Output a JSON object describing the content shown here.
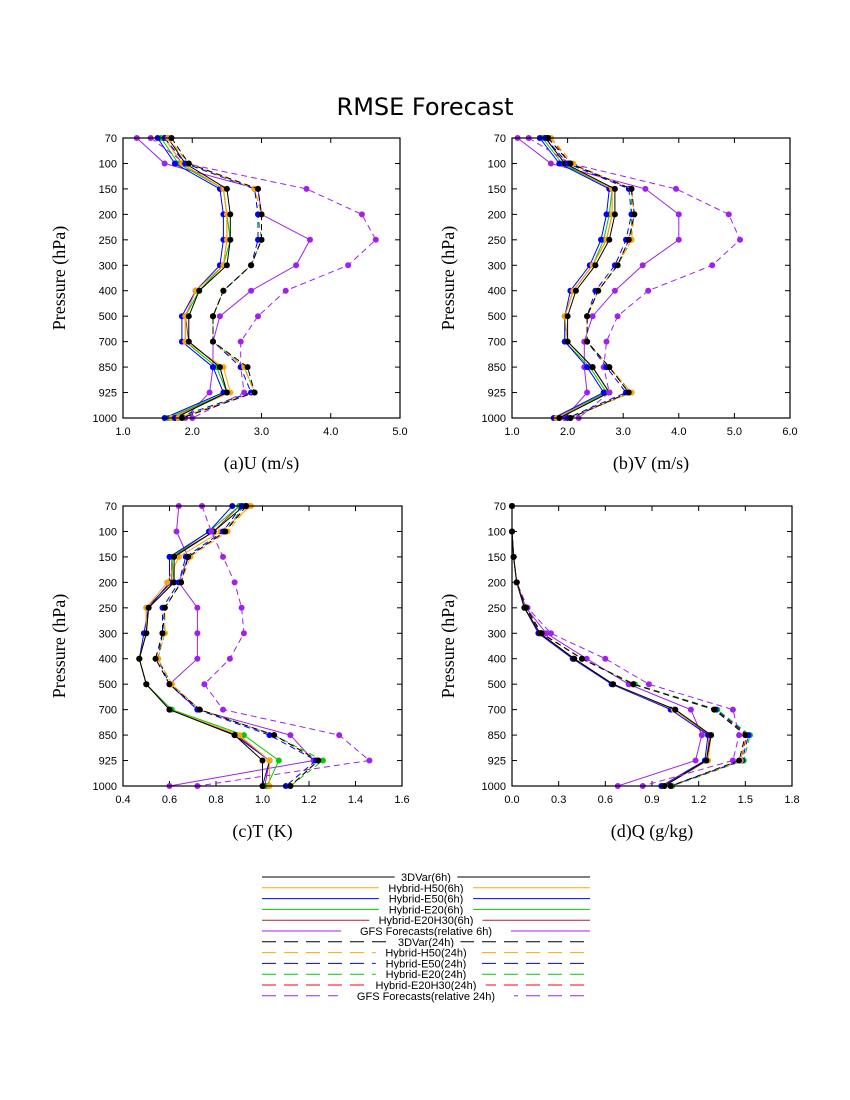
{
  "title": "RMSE  Forecast",
  "legend": [
    {
      "label": "3DVar(6h)",
      "color": "#000000",
      "dash": false
    },
    {
      "label": "Hybrid-H50(6h)",
      "color": "#ffa500",
      "dash": false
    },
    {
      "label": "Hybrid-E50(6h)",
      "color": "#0000ff",
      "dash": false
    },
    {
      "label": "Hybrid-E20(6h)",
      "color": "#00cc00",
      "dash": false
    },
    {
      "label": "Hybrid-E20H30(6h)",
      "color": "#b22222",
      "dash": false
    },
    {
      "label": "GFS Forecasts(relative 6h)",
      "color": "#a020f0",
      "dash": false
    },
    {
      "label": "3DVar(24h)",
      "color": "#000000",
      "dash": true
    },
    {
      "label": "Hybrid-H50(24h)",
      "color": "#ffa500",
      "dash": true
    },
    {
      "label": "Hybrid-E50(24h)",
      "color": "#0000ff",
      "dash": true
    },
    {
      "label": "Hybrid-E20(24h)",
      "color": "#00cc00",
      "dash": true
    },
    {
      "label": "Hybrid-E20H30(24h)",
      "color": "#ff0000",
      "dash": true
    },
    {
      "label": "GFS Forecasts(relative 24h)",
      "color": "#a020f0",
      "dash": true
    }
  ],
  "chart_data": [
    {
      "type": "line",
      "xlabel": "(a)U (m/s)",
      "ylabel": "Pressure (hPa)",
      "xlim": [
        1.0,
        5.0
      ],
      "xticks": [
        "1.0",
        "2.0",
        "3.0",
        "4.0",
        "5.0"
      ],
      "y": [
        "70",
        "100",
        "150",
        "200",
        "250",
        "300",
        "400",
        "500",
        "700",
        "850",
        "925",
        "1000"
      ],
      "series": [
        {
          "name": "3DVar(6h)",
          "values": [
            1.65,
            1.9,
            2.5,
            2.55,
            2.55,
            2.5,
            2.1,
            1.95,
            1.95,
            2.4,
            2.5,
            1.75
          ]
        },
        {
          "name": "Hybrid-H50(6h)",
          "values": [
            1.6,
            1.85,
            2.45,
            2.5,
            2.5,
            2.45,
            2.05,
            1.9,
            1.9,
            2.45,
            2.55,
            1.7
          ]
        },
        {
          "name": "Hybrid-E50(6h)",
          "values": [
            1.5,
            1.75,
            2.4,
            2.45,
            2.45,
            2.4,
            2.05,
            1.85,
            1.85,
            2.3,
            2.45,
            1.6
          ]
        },
        {
          "name": "Hybrid-E20(6h)",
          "values": [
            1.55,
            1.8,
            2.45,
            2.5,
            2.55,
            2.45,
            2.1,
            1.9,
            1.9,
            2.35,
            2.5,
            1.65
          ]
        },
        {
          "name": "Hybrid-E20H30(6h)",
          "values": [
            1.6,
            1.85,
            2.45,
            2.5,
            2.5,
            2.45,
            2.05,
            1.9,
            1.95,
            2.4,
            2.5,
            1.7
          ]
        },
        {
          "name": "GFS Forecasts(relative 6h)",
          "values": [
            1.2,
            1.6,
            2.95,
            3.0,
            3.7,
            3.5,
            2.85,
            2.4,
            2.3,
            2.3,
            2.25,
            1.9
          ]
        },
        {
          "name": "3DVar(24h)",
          "values": [
            1.7,
            1.95,
            2.95,
            3.0,
            3.0,
            2.85,
            2.45,
            2.3,
            2.3,
            2.8,
            2.9,
            1.85
          ]
        },
        {
          "name": "Hybrid-H50(24h)",
          "values": [
            1.65,
            1.95,
            2.9,
            3.0,
            3.0,
            2.85,
            2.45,
            2.3,
            2.3,
            2.75,
            2.9,
            1.8
          ]
        },
        {
          "name": "Hybrid-E50(24h)",
          "values": [
            1.6,
            1.9,
            2.9,
            2.95,
            2.95,
            2.85,
            2.45,
            2.3,
            2.3,
            2.7,
            2.85,
            1.75
          ]
        },
        {
          "name": "Hybrid-E20(24h)",
          "values": [
            1.6,
            1.9,
            2.9,
            2.95,
            3.0,
            2.85,
            2.45,
            2.3,
            2.3,
            2.75,
            2.9,
            1.8
          ]
        },
        {
          "name": "Hybrid-E20H30(24h)",
          "values": [
            1.65,
            1.95,
            2.9,
            3.0,
            3.0,
            2.85,
            2.45,
            2.3,
            2.3,
            2.75,
            2.9,
            1.8
          ]
        },
        {
          "name": "GFS Forecasts(relative 24h)",
          "values": [
            1.4,
            1.9,
            3.65,
            4.45,
            4.65,
            4.25,
            3.35,
            2.95,
            2.7,
            2.7,
            2.75,
            2.0
          ]
        }
      ]
    },
    {
      "type": "line",
      "xlabel": "(b)V (m/s)",
      "ylabel": "Pressure (hPa)",
      "xlim": [
        1.0,
        6.0
      ],
      "xticks": [
        "1.0",
        "2.0",
        "3.0",
        "4.0",
        "5.0",
        "6.0"
      ],
      "y": [
        "70",
        "100",
        "150",
        "200",
        "250",
        "300",
        "400",
        "500",
        "700",
        "850",
        "925",
        "1000"
      ],
      "series": [
        {
          "name": "3DVar(6h)",
          "values": [
            1.6,
            1.95,
            2.85,
            2.85,
            2.75,
            2.5,
            2.15,
            2.0,
            2.0,
            2.45,
            2.75,
            1.85
          ]
        },
        {
          "name": "Hybrid-H50(6h)",
          "values": [
            1.6,
            1.95,
            2.8,
            2.8,
            2.7,
            2.45,
            2.1,
            1.95,
            2.0,
            2.45,
            2.75,
            1.8
          ]
        },
        {
          "name": "Hybrid-E50(6h)",
          "values": [
            1.5,
            1.85,
            2.75,
            2.7,
            2.6,
            2.4,
            2.05,
            1.95,
            1.95,
            2.35,
            2.65,
            1.75
          ]
        },
        {
          "name": "Hybrid-E20(6h)",
          "values": [
            1.55,
            1.9,
            2.8,
            2.75,
            2.65,
            2.45,
            2.1,
            1.95,
            1.95,
            2.4,
            2.7,
            1.8
          ]
        },
        {
          "name": "Hybrid-E20H30(6h)",
          "values": [
            1.6,
            1.95,
            2.8,
            2.8,
            2.7,
            2.45,
            2.1,
            1.95,
            2.0,
            2.45,
            2.75,
            1.8
          ]
        },
        {
          "name": "GFS Forecasts(relative 6h)",
          "values": [
            1.1,
            1.7,
            3.4,
            4.0,
            4.0,
            3.35,
            2.85,
            2.45,
            2.3,
            2.3,
            2.35,
            1.95
          ]
        },
        {
          "name": "3DVar(24h)",
          "values": [
            1.65,
            2.05,
            3.15,
            3.2,
            3.1,
            2.9,
            2.55,
            2.35,
            2.35,
            2.75,
            3.1,
            2.05
          ]
        },
        {
          "name": "Hybrid-H50(24h)",
          "values": [
            1.7,
            2.1,
            3.15,
            3.2,
            3.15,
            2.9,
            2.55,
            2.35,
            2.35,
            2.75,
            3.15,
            2.05
          ]
        },
        {
          "name": "Hybrid-E50(24h)",
          "values": [
            1.6,
            2.0,
            3.1,
            3.15,
            3.05,
            2.85,
            2.5,
            2.35,
            2.35,
            2.7,
            3.05,
            2.0
          ]
        },
        {
          "name": "Hybrid-E20(24h)",
          "values": [
            1.65,
            2.05,
            3.15,
            3.15,
            3.15,
            2.9,
            2.55,
            2.35,
            2.35,
            2.75,
            3.15,
            2.05
          ]
        },
        {
          "name": "Hybrid-E20H30(24h)",
          "values": [
            1.7,
            2.05,
            3.15,
            3.2,
            3.1,
            2.9,
            2.55,
            2.35,
            2.35,
            2.75,
            3.1,
            2.05
          ]
        },
        {
          "name": "GFS Forecasts(relative 24h)",
          "values": [
            1.3,
            2.05,
            3.95,
            4.9,
            5.1,
            4.6,
            3.45,
            2.9,
            2.7,
            2.65,
            2.75,
            2.2
          ]
        }
      ]
    },
    {
      "type": "line",
      "xlabel": "(c)T (K)",
      "ylabel": "Pressure (hPa)",
      "xlim": [
        0.4,
        1.6
      ],
      "xticks": [
        "0.4",
        "0.6",
        "0.8",
        "1.0",
        "1.2",
        "1.4",
        "1.6"
      ],
      "y": [
        "70",
        "100",
        "150",
        "200",
        "250",
        "300",
        "400",
        "500",
        "700",
        "850",
        "925",
        "1000"
      ],
      "series": [
        {
          "name": "3DVar(6h)",
          "values": [
            0.92,
            0.79,
            0.62,
            0.62,
            0.51,
            0.5,
            0.47,
            0.5,
            0.6,
            0.88,
            1.0,
            1.0
          ]
        },
        {
          "name": "Hybrid-H50(6h)",
          "values": [
            0.95,
            0.82,
            0.64,
            0.59,
            0.5,
            0.5,
            0.47,
            0.5,
            0.6,
            0.9,
            1.03,
            1.03
          ]
        },
        {
          "name": "Hybrid-E50(6h)",
          "values": [
            0.87,
            0.77,
            0.6,
            0.6,
            0.51,
            0.49,
            0.47,
            0.5,
            0.6,
            0.88,
            1.03,
            1.0
          ]
        },
        {
          "name": "Hybrid-E20(6h)",
          "values": [
            0.9,
            0.77,
            0.61,
            0.62,
            0.51,
            0.5,
            0.47,
            0.5,
            0.61,
            0.92,
            1.07,
            1.02
          ]
        },
        {
          "name": "Hybrid-E20H30(6h)",
          "values": [
            0.9,
            0.79,
            0.61,
            0.61,
            0.5,
            0.5,
            0.47,
            0.5,
            0.6,
            0.89,
            1.03,
            1.01
          ]
        },
        {
          "name": "GFS Forecasts(relative 6h)",
          "values": [
            0.64,
            0.63,
            0.68,
            0.64,
            0.72,
            0.72,
            0.72,
            0.6,
            0.72,
            1.12,
            1.22,
            0.6
          ]
        },
        {
          "name": "3DVar(24h)",
          "values": [
            0.93,
            0.84,
            0.68,
            0.65,
            0.58,
            0.57,
            0.54,
            0.6,
            0.73,
            1.05,
            1.24,
            1.12
          ]
        },
        {
          "name": "Hybrid-H50(24h)",
          "values": [
            0.94,
            0.85,
            0.69,
            0.65,
            0.58,
            0.58,
            0.55,
            0.61,
            0.73,
            1.05,
            1.24,
            1.12
          ]
        },
        {
          "name": "Hybrid-E50(24h)",
          "values": [
            0.91,
            0.83,
            0.67,
            0.64,
            0.57,
            0.57,
            0.55,
            0.6,
            0.72,
            1.03,
            1.23,
            1.1
          ]
        },
        {
          "name": "Hybrid-E20(24h)",
          "values": [
            0.92,
            0.84,
            0.68,
            0.65,
            0.58,
            0.58,
            0.55,
            0.61,
            0.73,
            1.05,
            1.26,
            1.12
          ]
        },
        {
          "name": "Hybrid-E20H30(24h)",
          "values": [
            0.93,
            0.84,
            0.68,
            0.65,
            0.58,
            0.57,
            0.54,
            0.6,
            0.73,
            1.05,
            1.24,
            1.12
          ]
        },
        {
          "name": "GFS Forecasts(relative 24h)",
          "values": [
            0.74,
            0.78,
            0.83,
            0.88,
            0.91,
            0.92,
            0.86,
            0.75,
            0.83,
            1.33,
            1.46,
            0.72
          ]
        }
      ]
    },
    {
      "type": "line",
      "xlabel": "(d)Q (g/kg)",
      "ylabel": "Pressure (hPa)",
      "xlim": [
        0.0,
        1.8
      ],
      "xticks": [
        "0.0",
        "0.3",
        "0.6",
        "0.9",
        "1.2",
        "1.5",
        "1.8"
      ],
      "y": [
        "70",
        "100",
        "150",
        "200",
        "250",
        "300",
        "400",
        "500",
        "700",
        "850",
        "925",
        "1000"
      ],
      "series": [
        {
          "name": "3DVar(6h)",
          "values": [
            0.0,
            0.0,
            0.01,
            0.03,
            0.08,
            0.18,
            0.4,
            0.65,
            1.05,
            1.28,
            1.25,
            0.98
          ]
        },
        {
          "name": "Hybrid-H50(6h)",
          "values": [
            0.0,
            0.0,
            0.01,
            0.03,
            0.08,
            0.18,
            0.4,
            0.65,
            1.04,
            1.28,
            1.26,
            0.98
          ]
        },
        {
          "name": "Hybrid-E50(6h)",
          "values": [
            0.0,
            0.0,
            0.01,
            0.03,
            0.08,
            0.17,
            0.39,
            0.64,
            1.02,
            1.26,
            1.24,
            0.96
          ]
        },
        {
          "name": "Hybrid-E20(6h)",
          "values": [
            0.0,
            0.0,
            0.01,
            0.03,
            0.08,
            0.18,
            0.4,
            0.65,
            1.04,
            1.28,
            1.26,
            0.98
          ]
        },
        {
          "name": "Hybrid-E20H30(6h)",
          "values": [
            0.0,
            0.0,
            0.01,
            0.03,
            0.08,
            0.18,
            0.4,
            0.65,
            1.04,
            1.27,
            1.25,
            0.97
          ]
        },
        {
          "name": "GFS Forecasts(relative 6h)",
          "values": [
            0.0,
            0.0,
            0.01,
            0.03,
            0.09,
            0.22,
            0.48,
            0.75,
            1.15,
            1.22,
            1.18,
            0.68
          ]
        },
        {
          "name": "3DVar(24h)",
          "values": [
            0.0,
            0.0,
            0.01,
            0.03,
            0.09,
            0.19,
            0.45,
            0.78,
            1.3,
            1.5,
            1.46,
            1.02
          ]
        },
        {
          "name": "Hybrid-H50(24h)",
          "values": [
            0.0,
            0.0,
            0.01,
            0.03,
            0.09,
            0.19,
            0.45,
            0.78,
            1.3,
            1.5,
            1.47,
            1.02
          ]
        },
        {
          "name": "Hybrid-E50(24h)",
          "values": [
            0.0,
            0.0,
            0.01,
            0.03,
            0.09,
            0.19,
            0.45,
            0.78,
            1.31,
            1.52,
            1.48,
            1.02
          ]
        },
        {
          "name": "Hybrid-E20(24h)",
          "values": [
            0.0,
            0.0,
            0.01,
            0.03,
            0.09,
            0.19,
            0.45,
            0.79,
            1.32,
            1.53,
            1.49,
            1.03
          ]
        },
        {
          "name": "Hybrid-E20H30(24h)",
          "values": [
            0.0,
            0.0,
            0.01,
            0.03,
            0.09,
            0.19,
            0.45,
            0.78,
            1.3,
            1.51,
            1.47,
            1.02
          ]
        },
        {
          "name": "GFS Forecasts(relative 24h)",
          "values": [
            0.0,
            0.0,
            0.01,
            0.03,
            0.1,
            0.25,
            0.6,
            0.88,
            1.42,
            1.46,
            1.42,
            0.84
          ]
        }
      ]
    }
  ]
}
